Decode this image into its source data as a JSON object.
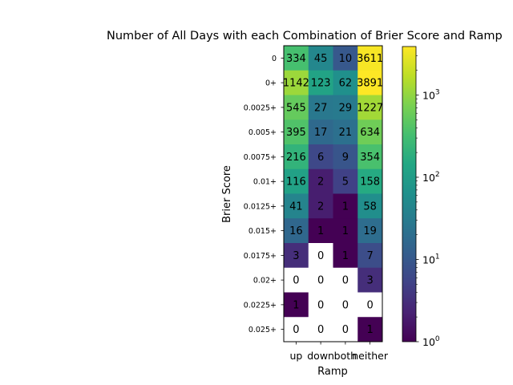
{
  "chart_data": {
    "type": "heatmap",
    "title": "Number of All Days with each Combination of Brier Score and Ramp",
    "xlabel": "Ramp",
    "ylabel": "Brier Score",
    "x_categories": [
      "up",
      "down",
      "both",
      "neither"
    ],
    "y_categories": [
      "0",
      "0+",
      "0.0025+",
      "0.005+",
      "0.0075+",
      "0.01+",
      "0.0125+",
      "0.015+",
      "0.0175+",
      "0.02+",
      "0.0225+",
      "0.025+"
    ],
    "values": [
      [
        334,
        45,
        10,
        3611
      ],
      [
        1142,
        123,
        62,
        3891
      ],
      [
        545,
        27,
        29,
        1227
      ],
      [
        395,
        17,
        21,
        634
      ],
      [
        216,
        6,
        9,
        354
      ],
      [
        116,
        2,
        5,
        158
      ],
      [
        41,
        2,
        1,
        58
      ],
      [
        16,
        1,
        1,
        19
      ],
      [
        3,
        0,
        1,
        7
      ],
      [
        0,
        0,
        0,
        3
      ],
      [
        1,
        0,
        0,
        0
      ],
      [
        0,
        0,
        0,
        1
      ]
    ],
    "cell_labels": [
      [
        "334",
        "45",
        "10",
        "3611"
      ],
      [
        "1142",
        "123",
        "62",
        "3891"
      ],
      [
        "545",
        "27",
        "29",
        "1227"
      ],
      [
        "395",
        "17",
        "21",
        "634"
      ],
      [
        "216",
        "6",
        "9",
        "354"
      ],
      [
        "116",
        "2",
        "5",
        "158"
      ],
      [
        "41",
        "2",
        "1",
        "58"
      ],
      [
        "16",
        "1",
        "1",
        "19"
      ],
      [
        "3",
        "0",
        "1",
        "7"
      ],
      [
        "0",
        "0",
        "0",
        "3"
      ],
      [
        "1",
        "0",
        "0",
        "0"
      ],
      [
        "0",
        "0",
        "0",
        "1"
      ]
    ],
    "colorbar": {
      "scale": "log",
      "colormap": "viridis",
      "range": [
        1,
        3891
      ],
      "tick_values": [
        1,
        10,
        100,
        1000
      ],
      "tick_labels": [
        {
          "base": "10",
          "exp": "0"
        },
        {
          "base": "10",
          "exp": "1"
        },
        {
          "base": "10",
          "exp": "2"
        },
        {
          "base": "10",
          "exp": "3"
        }
      ]
    },
    "grid": false,
    "zero_cells": "blank (white)"
  }
}
